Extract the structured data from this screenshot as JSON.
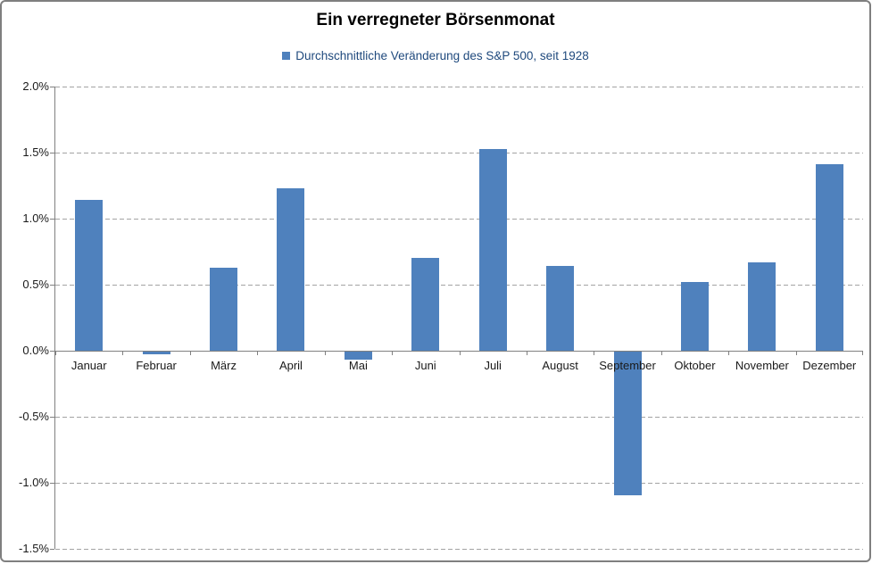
{
  "chart_data": {
    "type": "bar",
    "title": "Ein verregneter Börsenmonat",
    "legend": "Durchschnittliche Veränderung des S&P 500, seit 1928",
    "legend_position": "top",
    "categories": [
      "Januar",
      "Februar",
      "März",
      "April",
      "Mai",
      "Juni",
      "Juli",
      "August",
      "September",
      "Oktober",
      "November",
      "Dezember"
    ],
    "values": [
      1.14,
      -0.02,
      0.63,
      1.23,
      -0.06,
      0.7,
      1.53,
      0.64,
      -1.09,
      0.52,
      0.67,
      1.41
    ],
    "unit": "%",
    "ylim": [
      -1.5,
      2.0
    ],
    "ytick_step": 0.5,
    "ytick_labels": [
      "2.0%",
      "1.5%",
      "1.0%",
      "0.5%",
      "0.0%",
      "-0.5%",
      "-1.0%",
      "-1.5%"
    ],
    "grid": "dashed-horizontal",
    "colors": {
      "bar": "#4f81bd",
      "gridline": "#a3a3a3",
      "axis": "#808080",
      "title_text": "#000000",
      "legend_text": "#1f497d",
      "axis_text": "#1a1a1a",
      "frame_border": "#7f7f7f",
      "background": "#ffffff"
    }
  }
}
